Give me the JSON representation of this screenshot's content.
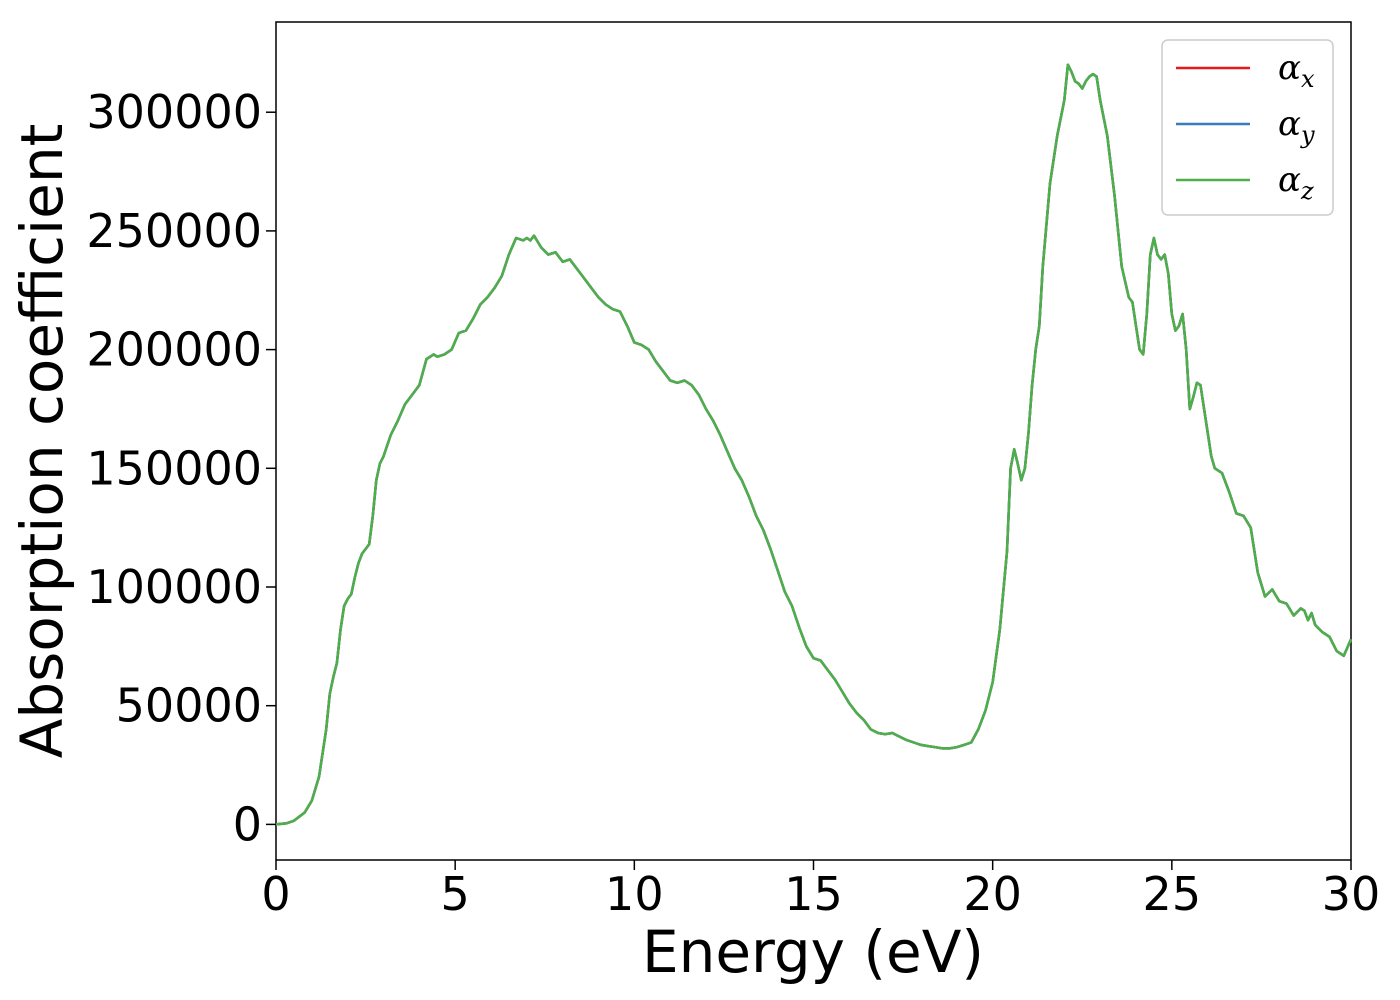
{
  "chart_data": {
    "type": "line",
    "xlabel": "Energy (eV)",
    "ylabel": "Absorption coefficient",
    "xlim": [
      0,
      30
    ],
    "ylim": [
      -15000,
      338000
    ],
    "xticks": [
      0,
      5,
      10,
      15,
      20,
      25,
      30
    ],
    "yticks": [
      0,
      50000,
      100000,
      150000,
      200000,
      250000,
      300000
    ],
    "xtick_labels": [
      "0",
      "5",
      "10",
      "15",
      "20",
      "25",
      "30"
    ],
    "ytick_labels": [
      "0",
      "50000",
      "100000",
      "150000",
      "200000",
      "250000",
      "300000"
    ],
    "grid": false,
    "legend_position": "top-right",
    "series": [
      {
        "name": "α",
        "subscript": "x",
        "color": "#e41a1c"
      },
      {
        "name": "α",
        "subscript": "y",
        "color": "#377eb8"
      },
      {
        "name": "α",
        "subscript": "z",
        "color": "#4daf4a"
      }
    ],
    "x": [
      0,
      0.3,
      0.5,
      0.8,
      1.0,
      1.2,
      1.4,
      1.5,
      1.6,
      1.7,
      1.8,
      1.9,
      2.0,
      2.1,
      2.2,
      2.3,
      2.4,
      2.6,
      2.7,
      2.8,
      2.9,
      3.0,
      3.2,
      3.4,
      3.6,
      3.8,
      4.0,
      4.2,
      4.4,
      4.5,
      4.7,
      4.9,
      5.1,
      5.3,
      5.5,
      5.7,
      5.9,
      6.1,
      6.3,
      6.5,
      6.7,
      6.9,
      7.0,
      7.1,
      7.2,
      7.4,
      7.6,
      7.8,
      8.0,
      8.2,
      8.4,
      8.6,
      8.8,
      9.0,
      9.2,
      9.4,
      9.6,
      9.8,
      10.0,
      10.2,
      10.4,
      10.6,
      10.8,
      11.0,
      11.2,
      11.4,
      11.6,
      11.8,
      12.0,
      12.2,
      12.4,
      12.6,
      12.8,
      13.0,
      13.2,
      13.4,
      13.6,
      13.8,
      14.0,
      14.2,
      14.4,
      14.6,
      14.8,
      15.0,
      15.2,
      15.4,
      15.6,
      15.8,
      16.0,
      16.2,
      16.4,
      16.6,
      16.8,
      17.0,
      17.2,
      17.4,
      17.6,
      17.8,
      18.0,
      18.2,
      18.4,
      18.6,
      18.8,
      19.0,
      19.2,
      19.4,
      19.6,
      19.8,
      20.0,
      20.2,
      20.4,
      20.5,
      20.6,
      20.7,
      20.8,
      20.9,
      21.0,
      21.1,
      21.2,
      21.3,
      21.4,
      21.6,
      21.8,
      22.0,
      22.1,
      22.2,
      22.3,
      22.4,
      22.5,
      22.6,
      22.7,
      22.8,
      22.9,
      23.0,
      23.2,
      23.4,
      23.6,
      23.8,
      23.9,
      24.0,
      24.1,
      24.2,
      24.3,
      24.4,
      24.5,
      24.6,
      24.7,
      24.8,
      24.9,
      25.0,
      25.1,
      25.2,
      25.3,
      25.4,
      25.5,
      25.6,
      25.7,
      25.8,
      25.9,
      26.0,
      26.1,
      26.2,
      26.4,
      26.6,
      26.8,
      27.0,
      27.2,
      27.4,
      27.6,
      27.8,
      28.0,
      28.2,
      28.4,
      28.6,
      28.7,
      28.8,
      28.9,
      29.0,
      29.2,
      29.4,
      29.6,
      29.8,
      30.0
    ],
    "y": [
      0,
      500,
      1500,
      5000,
      10000,
      20000,
      40000,
      55000,
      62000,
      68000,
      82000,
      92000,
      95000,
      97000,
      104000,
      110000,
      114000,
      118000,
      130000,
      145000,
      152000,
      155000,
      164000,
      170000,
      177000,
      181000,
      185000,
      196000,
      198000,
      197000,
      198000,
      200000,
      207000,
      208000,
      213000,
      219000,
      222000,
      226000,
      231000,
      240000,
      247000,
      246000,
      247000,
      246000,
      248000,
      243000,
      240000,
      241000,
      237000,
      238000,
      234000,
      230000,
      226000,
      222000,
      219000,
      217000,
      216000,
      210000,
      203000,
      202000,
      200000,
      195000,
      191000,
      187000,
      186000,
      187000,
      185000,
      181000,
      175000,
      170000,
      164000,
      157000,
      150000,
      145000,
      138000,
      130000,
      124000,
      116000,
      107000,
      98000,
      92000,
      83000,
      75000,
      70000,
      69000,
      65000,
      61000,
      56000,
      51000,
      47000,
      44000,
      40000,
      38500,
      38000,
      38500,
      37000,
      35500,
      34500,
      33500,
      33000,
      32500,
      32000,
      32000,
      32500,
      33500,
      34500,
      40000,
      48000,
      60000,
      82000,
      115000,
      150000,
      158000,
      152000,
      145000,
      150000,
      165000,
      185000,
      200000,
      210000,
      235000,
      270000,
      290000,
      305000,
      320000,
      317000,
      313000,
      312000,
      310000,
      313000,
      315000,
      316000,
      315000,
      305000,
      290000,
      265000,
      235000,
      222000,
      220000,
      210000,
      200000,
      198000,
      215000,
      240000,
      247000,
      240000,
      238000,
      240000,
      232000,
      215000,
      208000,
      210000,
      215000,
      200000,
      175000,
      180000,
      186000,
      185000,
      175000,
      165000,
      155000,
      150000,
      148000,
      140000,
      131000,
      130000,
      125000,
      106000,
      96000,
      99000,
      94000,
      93000,
      88000,
      91000,
      90000,
      86000,
      89000,
      84000,
      81000,
      79000,
      73000,
      71000,
      78000
    ]
  }
}
